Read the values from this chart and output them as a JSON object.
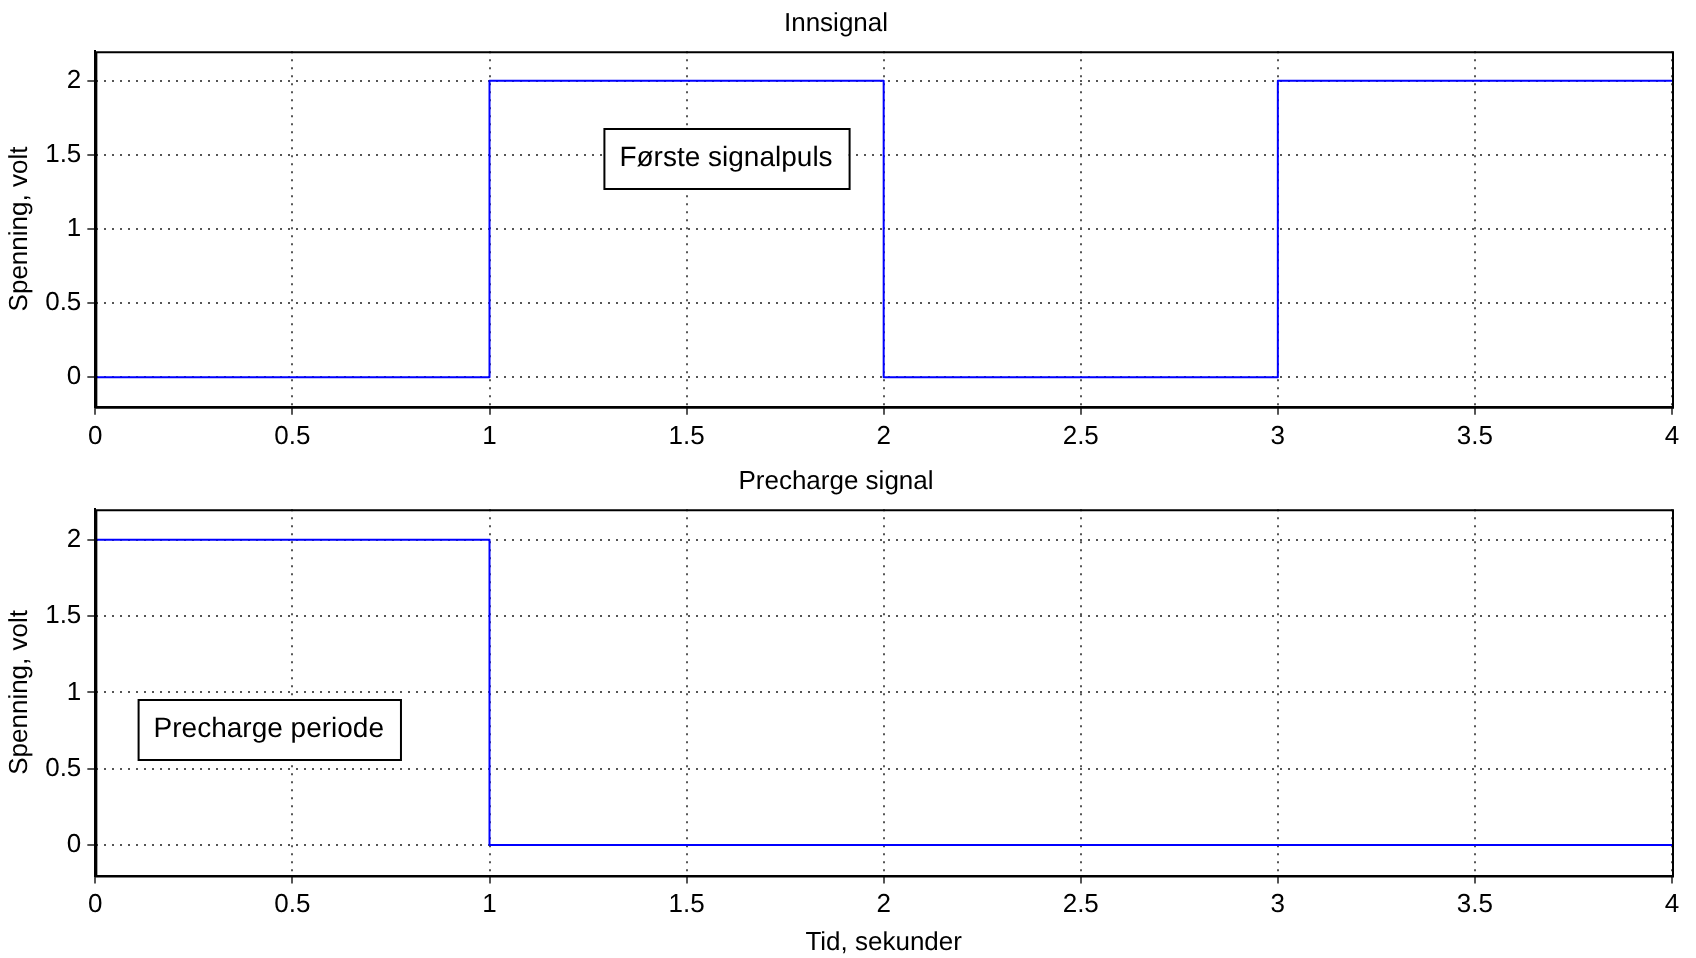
{
  "chart_data": [
    {
      "type": "step",
      "title": "Innsignal",
      "ylabel": "Spenning, volt",
      "x": [
        0,
        1,
        2,
        3,
        4
      ],
      "series": [
        {
          "color": "#0000ff",
          "values": [
            0,
            2,
            0,
            2,
            2
          ]
        }
      ],
      "xlim": [
        0,
        4
      ],
      "xticks": [
        0,
        0.5,
        1,
        1.5,
        2,
        2.5,
        3,
        3.5,
        4
      ],
      "ylim": [
        -0.2,
        2.2
      ],
      "yticks": [
        0,
        0.5,
        1,
        1.5,
        2
      ],
      "grid": true,
      "line_style": "solid",
      "annotations": [
        "Første signalpuls"
      ]
    },
    {
      "type": "step",
      "title": "Precharge signal",
      "xlabel": "Tid, sekunder",
      "ylabel": "Spenning, volt",
      "x": [
        0,
        1,
        4
      ],
      "series": [
        {
          "color": "#0000ff",
          "values": [
            2,
            0,
            0
          ]
        }
      ],
      "xlim": [
        0,
        4
      ],
      "xticks": [
        0,
        0.5,
        1,
        1.5,
        2,
        2.5,
        3,
        3.5,
        4
      ],
      "ylim": [
        -0.2,
        2.2
      ],
      "yticks": [
        0,
        0.5,
        1,
        1.5,
        2
      ],
      "grid": true,
      "line_style": "solid",
      "annotations": [
        "Precharge periode"
      ]
    }
  ]
}
